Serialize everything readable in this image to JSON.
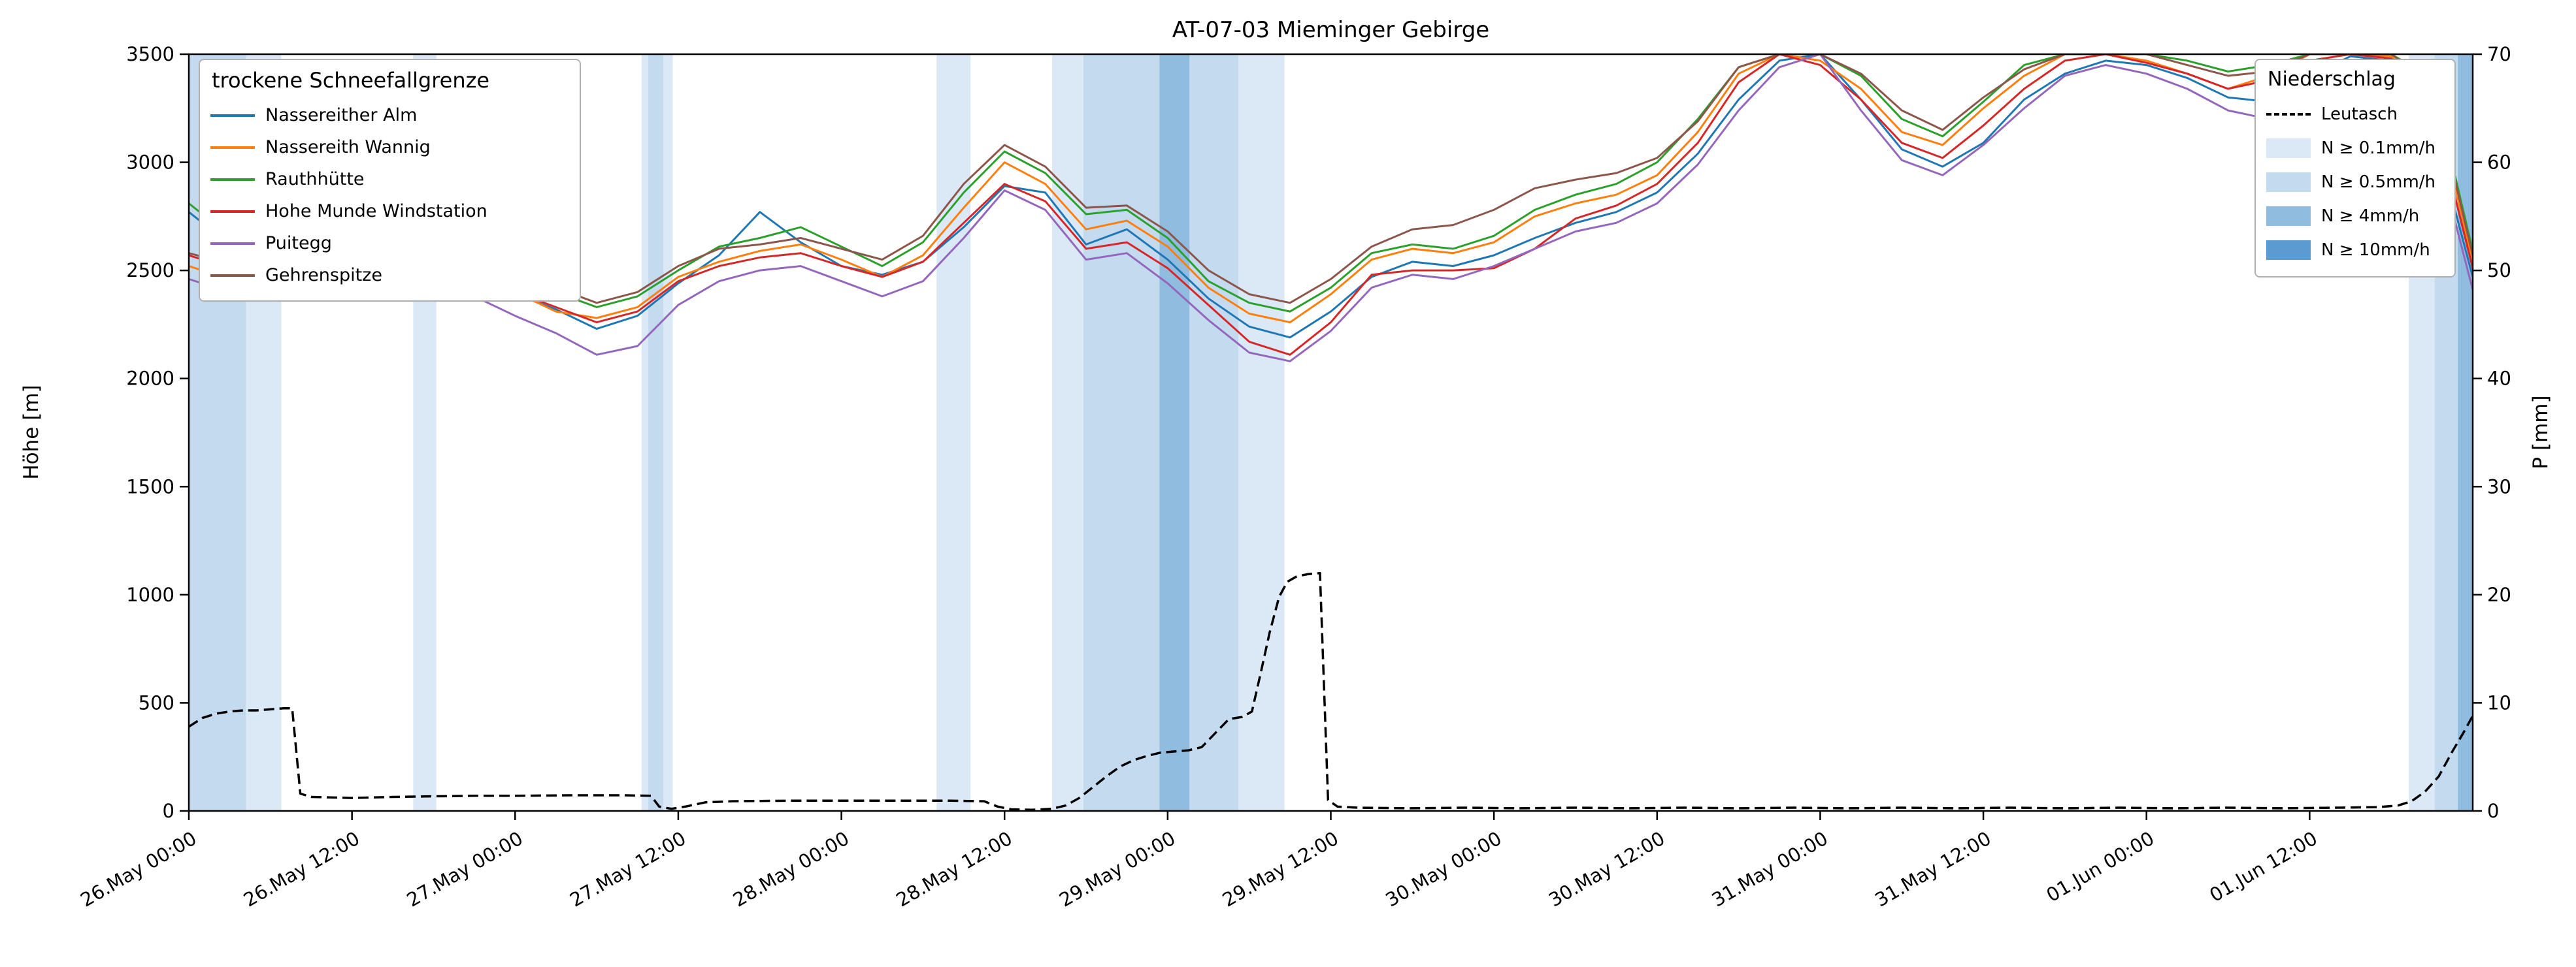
{
  "title": "AT-07-03 Mieminger Gebirge",
  "axes": {
    "y_left_label": "Höhe [m]",
    "y_right_label": "P [mm]"
  },
  "legend_snowline": {
    "title": "trockene Schneefallgrenze"
  },
  "legend_precip": {
    "title": "Niederschlag"
  },
  "chart_data": {
    "type": "line",
    "x_unit": "hours since 26 May 00:00",
    "x_range": [
      0,
      168
    ],
    "x_step_hours": 3,
    "y_left_range": [
      0,
      3500
    ],
    "y_right_range": [
      0,
      70
    ],
    "y_left_ticks": [
      0,
      500,
      1000,
      1500,
      2000,
      2500,
      3000,
      3500
    ],
    "y_right_ticks": [
      0,
      10,
      20,
      30,
      40,
      50,
      60,
      70
    ],
    "x_ticks": {
      "hours": [
        0,
        12,
        24,
        36,
        48,
        60,
        72,
        84,
        96,
        108,
        120,
        132,
        144,
        156
      ],
      "labels": [
        "26.May 00:00",
        "26.May 12:00",
        "27.May 00:00",
        "27.May 12:00",
        "28.May 00:00",
        "28.May 12:00",
        "29.May 00:00",
        "29.May 12:00",
        "30.May 00:00",
        "30.May 12:00",
        "31.May 00:00",
        "31.May 12:00",
        "01.Jun 00:00",
        "01.Jun 12:00"
      ]
    },
    "series": [
      {
        "name": "Nassereither Alm",
        "color": "#1f77b4",
        "values": [
          2770,
          2620,
          2760,
          2950,
          2880,
          2730,
          2590,
          2470,
          2390,
          2320,
          2230,
          2290,
          2440,
          2570,
          2770,
          2630,
          2520,
          2480,
          2540,
          2700,
          2890,
          2860,
          2620,
          2690,
          2550,
          2370,
          2240,
          2190,
          2310,
          2470,
          2540,
          2520,
          2570,
          2650,
          2720,
          2770,
          2860,
          3040,
          3290,
          3470,
          3500,
          3290,
          3060,
          2980,
          3090,
          3290,
          3410,
          3470,
          3450,
          3390,
          3300,
          3280,
          3400,
          3490,
          3470,
          3180,
          2470
        ]
      },
      {
        "name": "Nassereith Wannig",
        "color": "#ff7f0e",
        "values": [
          2520,
          2460,
          2700,
          2910,
          2830,
          2700,
          2570,
          2460,
          2400,
          2310,
          2280,
          2330,
          2470,
          2540,
          2590,
          2620,
          2550,
          2470,
          2570,
          2790,
          3000,
          2900,
          2690,
          2730,
          2610,
          2420,
          2300,
          2260,
          2390,
          2550,
          2600,
          2580,
          2630,
          2750,
          2810,
          2850,
          2940,
          3140,
          3410,
          3500,
          3470,
          3340,
          3140,
          3080,
          3250,
          3400,
          3500,
          3500,
          3470,
          3410,
          3340,
          3400,
          3500,
          3500,
          3490,
          3340,
          2540
        ]
      },
      {
        "name": "Rauthhütte",
        "color": "#2ca02c",
        "values": [
          2810,
          2660,
          2800,
          3010,
          2950,
          2800,
          2660,
          2550,
          2460,
          2400,
          2330,
          2380,
          2500,
          2610,
          2650,
          2700,
          2610,
          2520,
          2630,
          2860,
          3050,
          2950,
          2760,
          2780,
          2650,
          2450,
          2350,
          2310,
          2420,
          2580,
          2620,
          2600,
          2660,
          2780,
          2850,
          2900,
          3000,
          3200,
          3440,
          3500,
          3500,
          3400,
          3200,
          3120,
          3280,
          3450,
          3500,
          3500,
          3500,
          3470,
          3420,
          3450,
          3500,
          3500,
          3500,
          3390,
          2590
        ]
      },
      {
        "name": "Hohe Munde Windstation",
        "color": "#d62728",
        "values": [
          2570,
          2510,
          2790,
          3000,
          2880,
          2750,
          2610,
          2480,
          2400,
          2330,
          2260,
          2310,
          2450,
          2520,
          2560,
          2580,
          2520,
          2470,
          2540,
          2720,
          2900,
          2820,
          2600,
          2630,
          2510,
          2340,
          2170,
          2110,
          2260,
          2480,
          2500,
          2500,
          2510,
          2600,
          2740,
          2800,
          2900,
          3090,
          3370,
          3500,
          3450,
          3290,
          3090,
          3020,
          3170,
          3340,
          3470,
          3500,
          3460,
          3410,
          3340,
          3380,
          3470,
          3500,
          3480,
          3270,
          2510
        ]
      },
      {
        "name": "Puitegg",
        "color": "#9467bd",
        "values": [
          2460,
          2400,
          2650,
          2870,
          2800,
          2650,
          2500,
          2380,
          2290,
          2210,
          2110,
          2150,
          2340,
          2450,
          2500,
          2520,
          2450,
          2380,
          2450,
          2650,
          2870,
          2780,
          2550,
          2580,
          2440,
          2270,
          2120,
          2080,
          2220,
          2420,
          2480,
          2460,
          2520,
          2600,
          2680,
          2720,
          2810,
          2990,
          3240,
          3440,
          3500,
          3240,
          3010,
          2940,
          3080,
          3250,
          3400,
          3450,
          3410,
          3340,
          3240,
          3200,
          3350,
          3470,
          3440,
          3140,
          2410
        ]
      },
      {
        "name": "Gehrenspitze",
        "color": "#8c564b",
        "values": [
          2580,
          2530,
          2750,
          2950,
          2900,
          2780,
          2660,
          2560,
          2480,
          2420,
          2350,
          2400,
          2520,
          2600,
          2620,
          2650,
          2600,
          2550,
          2660,
          2900,
          3080,
          2980,
          2790,
          2800,
          2680,
          2500,
          2390,
          2350,
          2460,
          2610,
          2690,
          2710,
          2780,
          2880,
          2920,
          2950,
          3020,
          3190,
          3440,
          3500,
          3500,
          3410,
          3240,
          3150,
          3300,
          3430,
          3500,
          3500,
          3500,
          3450,
          3400,
          3420,
          3500,
          3500,
          3500,
          3370,
          2570
        ]
      }
    ],
    "precip_line": {
      "name": "Leutasch",
      "color": "#000000",
      "dashed": true,
      "axis": "right",
      "points": [
        [
          0,
          7.8
        ],
        [
          1,
          8.6
        ],
        [
          2,
          9.0
        ],
        [
          3,
          9.2
        ],
        [
          4,
          9.3
        ],
        [
          5,
          9.3
        ],
        [
          6,
          9.4
        ],
        [
          7,
          9.5
        ],
        [
          7.6,
          9.5
        ],
        [
          8.2,
          1.6
        ],
        [
          9,
          1.3
        ],
        [
          12,
          1.2
        ],
        [
          15,
          1.3
        ],
        [
          18,
          1.35
        ],
        [
          21,
          1.4
        ],
        [
          24,
          1.4
        ],
        [
          28,
          1.45
        ],
        [
          32,
          1.45
        ],
        [
          34,
          1.4
        ],
        [
          34.6,
          0.4
        ],
        [
          35.5,
          0.2
        ],
        [
          36.5,
          0.4
        ],
        [
          38,
          0.8
        ],
        [
          40,
          0.9
        ],
        [
          44,
          0.95
        ],
        [
          48,
          0.95
        ],
        [
          52,
          0.95
        ],
        [
          56,
          0.95
        ],
        [
          58.5,
          0.9
        ],
        [
          59.5,
          0.4
        ],
        [
          60.5,
          0.15
        ],
        [
          62,
          0.1
        ],
        [
          63.5,
          0.2
        ],
        [
          64.5,
          0.5
        ],
        [
          65.5,
          1.2
        ],
        [
          66.5,
          2.2
        ],
        [
          67.5,
          3.2
        ],
        [
          68.5,
          4.1
        ],
        [
          69.5,
          4.7
        ],
        [
          70.5,
          5.1
        ],
        [
          71.5,
          5.4
        ],
        [
          72.5,
          5.5
        ],
        [
          73.5,
          5.6
        ],
        [
          74.5,
          5.9
        ],
        [
          75.5,
          7.2
        ],
        [
          76.5,
          8.5
        ],
        [
          77.5,
          8.7
        ],
        [
          78.2,
          9.2
        ],
        [
          78.8,
          12.5
        ],
        [
          79.5,
          16.5
        ],
        [
          80.2,
          19.8
        ],
        [
          80.8,
          21.2
        ],
        [
          81.5,
          21.7
        ],
        [
          82.3,
          21.9
        ],
        [
          83.2,
          22.0
        ],
        [
          83.8,
          1.0
        ],
        [
          84.5,
          0.4
        ],
        [
          86,
          0.3
        ],
        [
          90,
          0.25
        ],
        [
          94,
          0.3
        ],
        [
          98,
          0.25
        ],
        [
          102,
          0.3
        ],
        [
          106,
          0.25
        ],
        [
          110,
          0.3
        ],
        [
          114,
          0.25
        ],
        [
          118,
          0.3
        ],
        [
          122,
          0.25
        ],
        [
          126,
          0.3
        ],
        [
          130,
          0.25
        ],
        [
          134,
          0.3
        ],
        [
          138,
          0.25
        ],
        [
          142,
          0.3
        ],
        [
          146,
          0.25
        ],
        [
          150,
          0.3
        ],
        [
          154,
          0.25
        ],
        [
          158,
          0.3
        ],
        [
          161,
          0.35
        ],
        [
          162.5,
          0.5
        ],
        [
          163.5,
          0.9
        ],
        [
          164.5,
          1.8
        ],
        [
          165.5,
          3.2
        ],
        [
          166.5,
          5.5
        ],
        [
          167.3,
          7.2
        ],
        [
          168,
          8.8
        ]
      ]
    },
    "precip_levels": [
      {
        "label": "N ≥ 0.1mm/h",
        "color": "#dbe9f6"
      },
      {
        "label": "N ≥ 0.5mm/h",
        "color": "#c4daef"
      },
      {
        "label": "N ≥ 4mm/h",
        "color": "#8fbcdf"
      },
      {
        "label": "N ≥ 10mm/h",
        "color": "#5b9bd1"
      }
    ],
    "precip_bands": [
      {
        "start_h": 0,
        "end_h": 6.8,
        "level": 0
      },
      {
        "start_h": 0,
        "end_h": 4.2,
        "level": 1
      },
      {
        "start_h": 16.5,
        "end_h": 18.2,
        "level": 0
      },
      {
        "start_h": 33.3,
        "end_h": 35.6,
        "level": 0
      },
      {
        "start_h": 33.8,
        "end_h": 34.9,
        "level": 1
      },
      {
        "start_h": 55.0,
        "end_h": 57.5,
        "level": 0
      },
      {
        "start_h": 63.5,
        "end_h": 80.6,
        "level": 0
      },
      {
        "start_h": 65.8,
        "end_h": 77.2,
        "level": 1
      },
      {
        "start_h": 71.4,
        "end_h": 73.6,
        "level": 2
      },
      {
        "start_h": 163.3,
        "end_h": 168,
        "level": 0
      },
      {
        "start_h": 165.2,
        "end_h": 168,
        "level": 1
      },
      {
        "start_h": 166.9,
        "end_h": 168,
        "level": 2
      }
    ]
  }
}
